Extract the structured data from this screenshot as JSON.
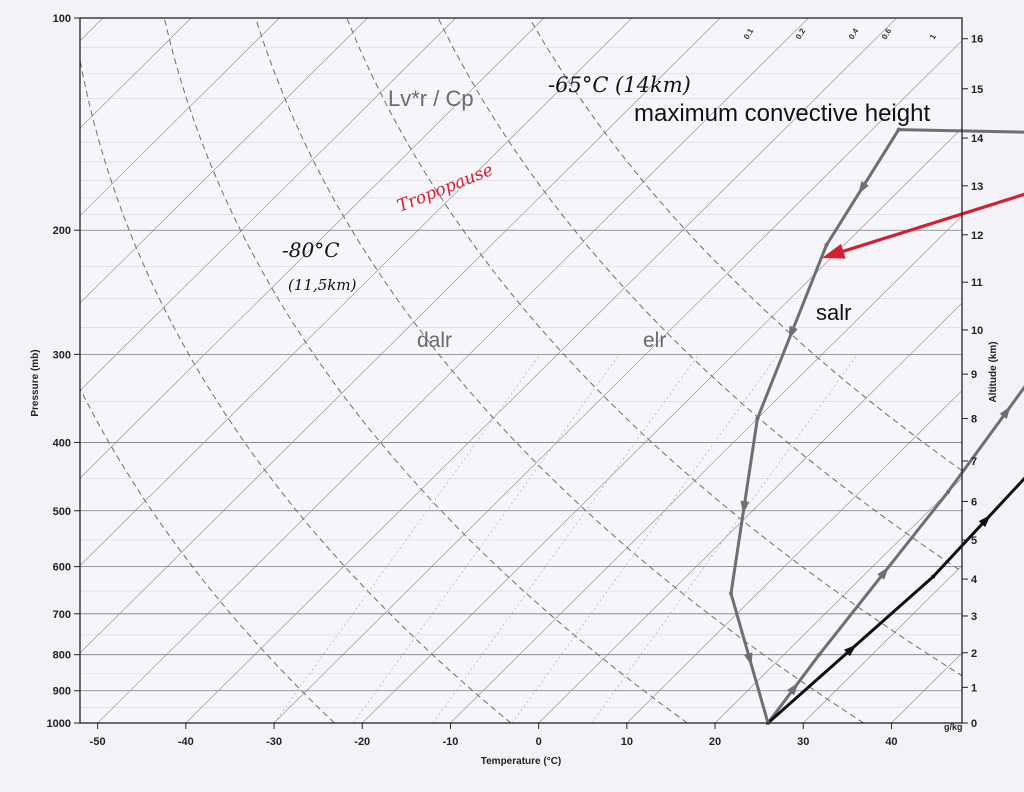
{
  "chart_data": {
    "type": "line",
    "title": "",
    "xlabel": "Temperature (°C)",
    "ylabel": "Pressure (mb)",
    "y2label": "Altitude (km)",
    "xlim": [
      -52,
      48
    ],
    "ylim": [
      1000,
      100
    ],
    "yscale": "log",
    "grid": true,
    "x_ticks": [
      -50,
      -40,
      -30,
      -20,
      -10,
      0,
      10,
      20,
      30,
      40
    ],
    "x_tick_labels": [
      "-50",
      "-40",
      "-30",
      "-20",
      "-10",
      "0",
      "10",
      "20",
      "30",
      "40"
    ],
    "y_ticks": [
      100,
      200,
      300,
      400,
      500,
      600,
      700,
      800,
      900,
      1000
    ],
    "y_tick_labels": [
      "100",
      "200",
      "300",
      "400",
      "500",
      "600",
      "700",
      "800",
      "900",
      "1000"
    ],
    "alt_ticks": [
      0,
      1,
      2,
      3,
      4,
      5,
      6,
      7,
      8,
      9,
      10,
      11,
      12,
      13,
      14,
      15,
      16
    ],
    "alt_tick_labels": [
      "0",
      "1",
      "2",
      "3",
      "4",
      "5",
      "6",
      "7",
      "8",
      "9",
      "10",
      "11",
      "12",
      "13",
      "14",
      "15",
      "16"
    ],
    "alt_ticks_pressure": [
      1000,
      890,
      795,
      705,
      625,
      550,
      485,
      425,
      370,
      320,
      277,
      237,
      203,
      173,
      148,
      126,
      107
    ],
    "mixing_ratio_labels": [
      "0.1",
      "0.2",
      "0.4",
      "0.6",
      "1"
    ],
    "mixing_ratio_unit": "g/kg",
    "skew_T_per_ln_p": 35,
    "dry_adiabat_thetas": [
      250,
      270,
      290,
      310,
      330,
      350,
      370
    ],
    "series": [
      {
        "name": "elr",
        "color": "#6f6f6f",
        "arrows": "up",
        "points": [
          [
            26,
            1000
          ],
          [
            24,
            800
          ],
          [
            20,
            470
          ],
          [
            15,
            280
          ],
          [
            9,
            147
          ]
        ]
      },
      {
        "name": "salr",
        "color": "#111111",
        "arrows": "up",
        "points": [
          [
            26,
            1000
          ],
          [
            28,
            620
          ],
          [
            27,
            430
          ],
          [
            25,
            310
          ],
          [
            19,
            210
          ],
          [
            9,
            147
          ]
        ]
      },
      {
        "name": "dalr",
        "color": "#6f6f6f",
        "arrows": "down",
        "points": [
          [
            -27,
            144
          ],
          [
            -22,
            210
          ],
          [
            -10,
            370
          ],
          [
            7,
            655
          ],
          [
            26,
            1000
          ]
        ]
      },
      {
        "name": "Lv*r / Cp",
        "color": "#6f6f6f",
        "arrows": "left",
        "points": [
          [
            9,
            147
          ],
          [
            -27,
            144
          ]
        ]
      },
      {
        "name": "Tropopause",
        "color": "#d42030",
        "arrows": "end",
        "points": [
          [
            9,
            147
          ],
          [
            -20,
            216
          ]
        ]
      }
    ],
    "annotations": {
      "lvr": "Lv*r / Cp",
      "max_height": "maximum convective height",
      "temp_top": "-65°C (14km)",
      "temp_bottom": "-80°C",
      "alt_bottom": "(11,5km)",
      "tropopause": "Tropopause",
      "dalr": "dalr",
      "elr": "elr",
      "salr": "salr"
    }
  }
}
